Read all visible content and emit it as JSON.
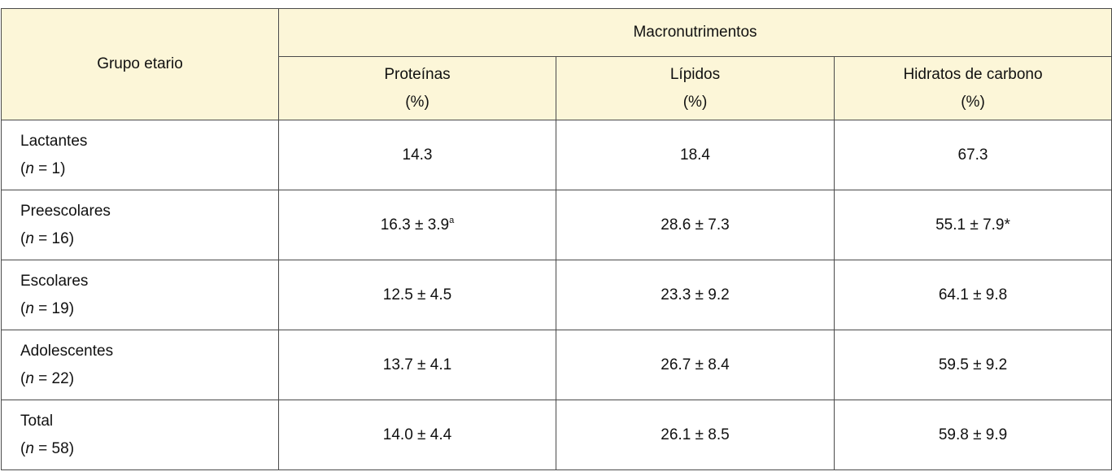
{
  "table": {
    "corner": "Grupo etario",
    "group_header": "Macronutrimentos",
    "columns": [
      {
        "name": "Proteínas",
        "unit": "(%)"
      },
      {
        "name": "Lípidos",
        "unit": "(%)"
      },
      {
        "name": "Hidratos de carbono",
        "unit": "(%)"
      }
    ],
    "rows": [
      {
        "group": "Lactantes",
        "sample": [
          "(",
          "n",
          " = 1)"
        ],
        "cells": [
          {
            "text": "14.3"
          },
          {
            "text": "18.4"
          },
          {
            "text": "67.3"
          }
        ]
      },
      {
        "group": "Preescolares",
        "sample": [
          "(",
          "n",
          " = 16)"
        ],
        "cells": [
          {
            "text": "16.3 ± 3.9",
            "sup": "a"
          },
          {
            "text": "28.6 ± 7.3"
          },
          {
            "text": "55.1 ± 7.9*"
          }
        ]
      },
      {
        "group": "Escolares",
        "sample": [
          "(",
          "n",
          " = 19)"
        ],
        "cells": [
          {
            "text": "12.5 ± 4.5"
          },
          {
            "text": "23.3 ± 9.2"
          },
          {
            "text": "64.1 ± 9.8"
          }
        ]
      },
      {
        "group": "Adolescentes",
        "sample": [
          "(",
          "n",
          " = 22)"
        ],
        "cells": [
          {
            "text": "13.7 ± 4.1"
          },
          {
            "text": "26.7 ± 8.4"
          },
          {
            "text": "59.5 ± 9.2"
          }
        ]
      },
      {
        "group": "Total",
        "sample": [
          "(",
          "n",
          " = 58)"
        ],
        "cells": [
          {
            "text": "14.0 ± 4.4"
          },
          {
            "text": "26.1 ± 8.5"
          },
          {
            "text": "59.8 ± 9.9"
          }
        ]
      }
    ]
  }
}
